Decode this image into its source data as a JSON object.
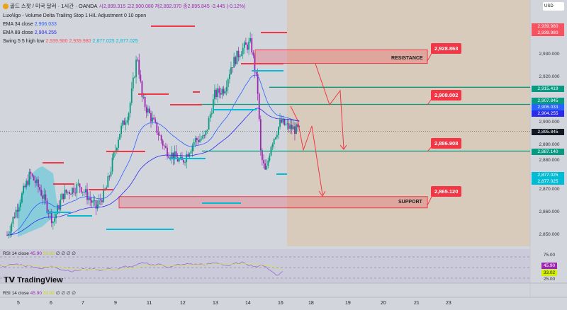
{
  "header": {
    "symbol_title": "골드 스팟 / 미국 달러 · 1시간 · OANDA",
    "open": "시2,899.315",
    "high": "고2,900.080",
    "low": "저2,892.070",
    "close": "종2,895.845",
    "change": "-3.445 (-0.12%)"
  },
  "indicators": {
    "luxalgo": "LuxAlgo - Volume Delta Trailing Stop 1 H/L Adjustment 0 10 open",
    "ema34_label": "EMA 34 close",
    "ema34_value": "2,906.033",
    "ema89_label": "EMA 89 close",
    "ema89_value": "2,904.255",
    "swing_label": "Swing 5 5 high low",
    "swing_values": [
      "2,939.980",
      "2,939.980",
      "2,877.025",
      "2,877.025"
    ],
    "rsi_label": "RSI 14 close",
    "rsi_value": "45.90",
    "rsi_ma": "33.02",
    "rsi_extra": "∅ ∅ ∅ ∅"
  },
  "price_axis": {
    "currency": "USD",
    "ticks": [
      "2,930.000",
      "2,920.000",
      "2,900.000",
      "2,890.000",
      "2,880.000",
      "2,870.000",
      "2,860.000",
      "2,850.000"
    ],
    "tags": [
      {
        "text": "2,939.980",
        "color": "#f7525f",
        "price": 2937.6
      },
      {
        "text": "2,939.980",
        "color": "#f7525f",
        "price": 2934.2
      },
      {
        "text": "2,915.419",
        "color": "#089981",
        "price": 2915.4
      },
      {
        "text": "2,907.845",
        "color": "#089981",
        "price": 2908.2
      },
      {
        "text": "2,906.033",
        "color": "#2962ff",
        "price": 2904.9
      },
      {
        "text": "2,904.255",
        "color": "#2a2ae8",
        "price": 2901.6
      },
      {
        "text": "2,895.845",
        "color": "#131722",
        "price": 2895.8
      },
      {
        "text": "2,887.140",
        "color": "#089981",
        "price": 2887.1
      },
      {
        "text": "2,877.025",
        "color": "#00bcd4",
        "price": 2878.4
      },
      {
        "text": "2,877.025",
        "color": "#00bcd4",
        "price": 2875.0
      }
    ]
  },
  "rsi_axis": {
    "ticks": [
      "75.00",
      "25.00"
    ],
    "tag_rsi": "45.90",
    "tag_ma": "33.02"
  },
  "time_axis": [
    "5",
    "6",
    "7",
    "9",
    "11",
    "12",
    "13",
    "14",
    "16",
    "18",
    "19",
    "20",
    "21",
    "23"
  ],
  "annotations": {
    "resistance_label": "RESISTANCE",
    "support_label": "SUPPORT",
    "callouts": [
      "2,928.863",
      "2,908.002",
      "2,886.908",
      "2,865.120"
    ]
  },
  "watermark": "TradingView",
  "chart_data": {
    "type": "candlestick",
    "price_waypoints": [
      [
        0,
        2850
      ],
      [
        0.3,
        2862
      ],
      [
        0.7,
        2877
      ],
      [
        1,
        2870
      ],
      [
        1.4,
        2856
      ],
      [
        1.7,
        2868
      ],
      [
        2.2,
        2872
      ],
      [
        2.7,
        2862
      ],
      [
        3,
        2870
      ],
      [
        3.4,
        2895
      ],
      [
        3.7,
        2905
      ],
      [
        3.95,
        2930
      ],
      [
        4.1,
        2910
      ],
      [
        4.5,
        2898
      ],
      [
        4.8,
        2888
      ],
      [
        5.3,
        2882
      ],
      [
        5.7,
        2892
      ],
      [
        6,
        2893
      ],
      [
        6.3,
        2912
      ],
      [
        6.6,
        2915
      ],
      [
        6.8,
        2925
      ],
      [
        7.1,
        2932
      ],
      [
        7.4,
        2935
      ],
      [
        7.6,
        2915
      ],
      [
        7.7,
        2885
      ],
      [
        7.85,
        2877
      ],
      [
        8,
        2890
      ],
      [
        8.3,
        2900
      ],
      [
        8.5,
        2898
      ],
      [
        8.9,
        2896
      ]
    ],
    "resistance_zone": [
      2926,
      2932
    ],
    "support_zone": [
      2862,
      2867
    ],
    "levels": [
      2915.419,
      2907.845,
      2887.14
    ],
    "colors": {
      "up": "#089981",
      "down": "#9c27b0",
      "ema34": "#2962ff",
      "ema89": "#2a2ae8"
    }
  }
}
